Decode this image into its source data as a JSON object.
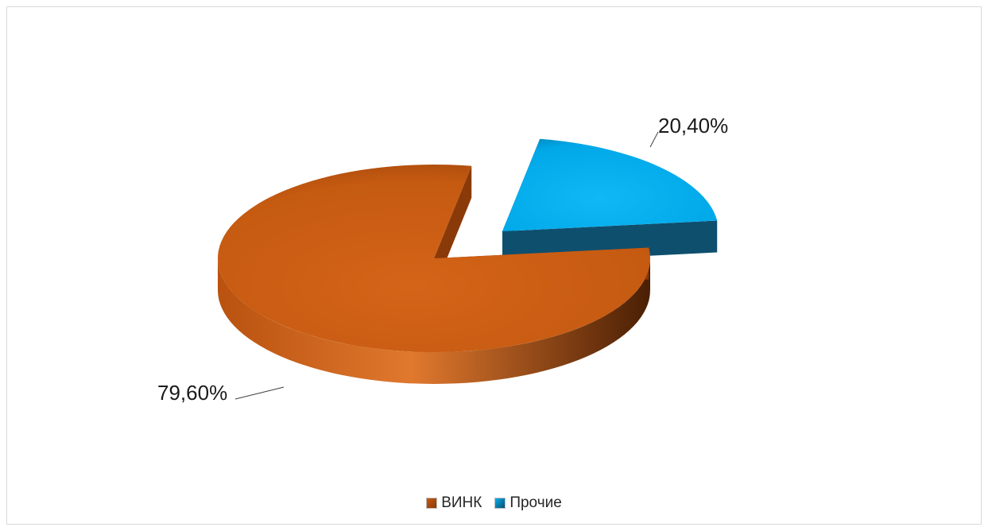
{
  "chart_data": {
    "type": "pie",
    "title": "",
    "categories": [
      "ВИНК",
      "Прочие"
    ],
    "values": [
      79.6,
      20.4
    ],
    "value_labels": [
      "79,60%",
      "20,40%"
    ],
    "colors": [
      "#C55A11",
      "#00B0F0"
    ],
    "side_colors": [
      "#8A3A08",
      "#0F4F6E"
    ],
    "legend_position": "bottom",
    "style": "3d-exploded"
  }
}
